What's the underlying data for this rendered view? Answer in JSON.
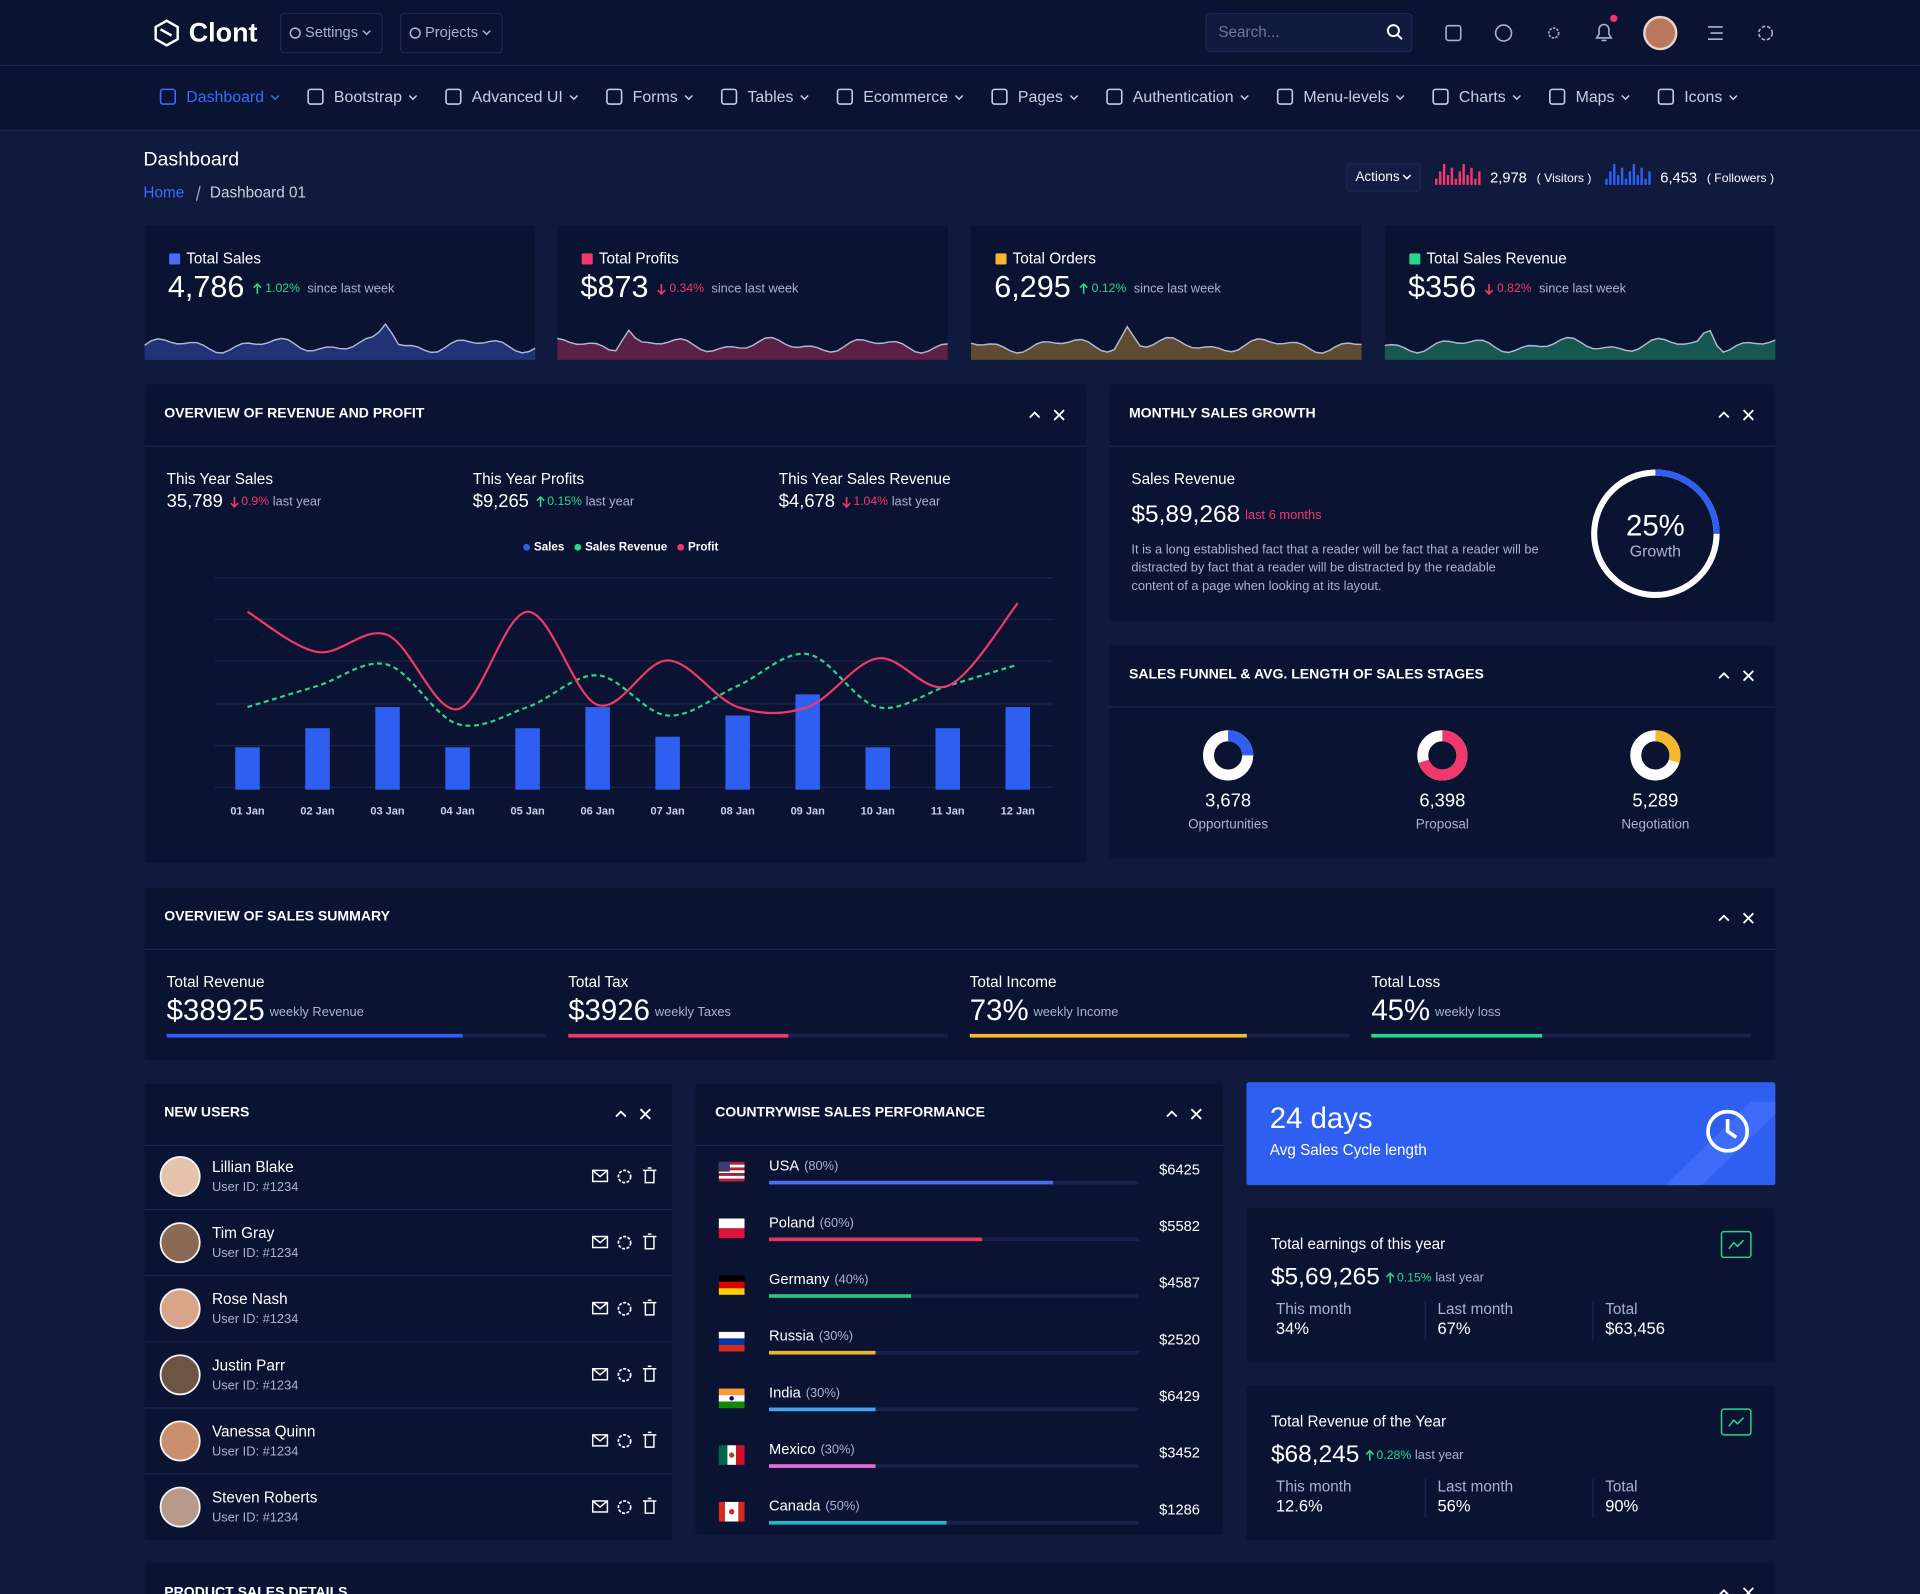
{
  "brand": "Clont",
  "topbar": {
    "menus": [
      "Settings",
      "Projects"
    ],
    "search_placeholder": "Search..."
  },
  "nav": [
    "Dashboard",
    "Bootstrap",
    "Advanced UI",
    "Forms",
    "Tables",
    "Ecommerce",
    "Pages",
    "Authentication",
    "Menu-levels",
    "Charts",
    "Maps",
    "Icons"
  ],
  "page": {
    "title": "Dashboard",
    "breadcrumb": [
      "Home",
      "Dashboard 01"
    ],
    "actions": "Actions",
    "visitors": {
      "value": "2,978",
      "label": "( Visitors )"
    },
    "followers": {
      "value": "6,453",
      "label": "( Followers )"
    }
  },
  "stats": [
    {
      "label": "Total Sales",
      "value": "4,786",
      "change": "1.02%",
      "trend": "up",
      "note": "since last week",
      "color": "#4a6cf7"
    },
    {
      "label": "Total Profits",
      "value": "$873",
      "change": "0.34%",
      "trend": "down",
      "note": "since last week",
      "color": "#f0386b"
    },
    {
      "label": "Total Orders",
      "value": "6,295",
      "change": "0.12%",
      "trend": "up",
      "note": "since last week",
      "color": "#f5b82e"
    },
    {
      "label": "Total Sales Revenue",
      "value": "$356",
      "change": "0.82%",
      "trend": "down",
      "note": "since last week",
      "color": "#2bd68a"
    }
  ],
  "overview": {
    "title": "OVERVIEW OF REVENUE AND PROFIT",
    "summary": [
      {
        "label": "This Year Sales",
        "value": "35,789",
        "change": "0.9%",
        "trend": "down",
        "note": "last year"
      },
      {
        "label": "This Year Profits",
        "value": "$9,265",
        "change": "0.15%",
        "trend": "up",
        "note": "last year"
      },
      {
        "label": "This Year Sales Revenue",
        "value": "$4,678",
        "change": "1.04%",
        "trend": "down",
        "note": "last year"
      }
    ],
    "chart": {
      "type": "bar",
      "categories": [
        "01 Jan",
        "02 Jan",
        "03 Jan",
        "04 Jan",
        "05 Jan",
        "06 Jan",
        "07 Jan",
        "08 Jan",
        "09 Jan",
        "10 Jan",
        "11 Jan",
        "12 Jan"
      ],
      "series": [
        {
          "name": "Sales",
          "color": "#2f5ff0",
          "values": [
            20,
            29,
            39,
            20,
            29,
            39,
            25,
            35,
            45,
            20,
            29,
            39
          ]
        },
        {
          "name": "Sales Revenue",
          "color": "#2bd68a",
          "type": "line",
          "dashed": true,
          "values": [
            39,
            49,
            59,
            31,
            39,
            54,
            35,
            49,
            64,
            39,
            49,
            59
          ]
        },
        {
          "name": "Profit",
          "color": "#f0386b",
          "type": "line",
          "values": [
            84,
            65,
            73,
            38,
            84,
            40,
            61,
            39,
            39,
            62,
            49,
            88
          ]
        }
      ],
      "ylim": [
        0,
        100
      ],
      "grid": true
    }
  },
  "growth": {
    "title": "MONTHLY SALES GROWTH",
    "label": "Sales Revenue",
    "value": "$5,89,268",
    "period": "last 6 months",
    "text": "It is a long established fact that a reader will be fact that a reader will be distracted by fact that a reader will be distracted by the readable content of a page when looking at its layout.",
    "percent": {
      "value": 25,
      "label": "25%"
    },
    "percent_caption": "Growth",
    "color": "#2f5ff0"
  },
  "funnel": {
    "title": "SALES FUNNEL & AVG. LENGTH OF SALES STAGES",
    "stages": [
      {
        "value": "3,678",
        "label": "Opportunities",
        "share": 25,
        "color": "#2f5ff0"
      },
      {
        "value": "6,398",
        "label": "Proposal",
        "share": 70,
        "color": "#f0386b"
      },
      {
        "value": "5,289",
        "label": "Negotiation",
        "share": 30,
        "color": "#f5b82e"
      }
    ]
  },
  "summary": {
    "title": "OVERVIEW OF SALES SUMMARY",
    "items": [
      {
        "label": "Total Revenue",
        "value": "$38925",
        "note": "weekly Revenue",
        "progress": 78,
        "color": "#2f5ff0"
      },
      {
        "label": "Total Tax",
        "value": "$3926",
        "note": "weekly Taxes",
        "progress": 58,
        "color": "#f0386b"
      },
      {
        "label": "Total Income",
        "value": "73%",
        "note": "weekly Income",
        "progress": 73,
        "color": "#f5b82e"
      },
      {
        "label": "Total Loss",
        "value": "45%",
        "note": "weekly loss",
        "progress": 45,
        "color": "#2bd68a"
      }
    ]
  },
  "users": {
    "title": "NEW USERS",
    "list": [
      {
        "name": "Lillian Blake",
        "id": "User ID: #1234"
      },
      {
        "name": "Tim Gray",
        "id": "User ID: #1234"
      },
      {
        "name": "Rose Nash",
        "id": "User ID: #1234"
      },
      {
        "name": "Justin Parr",
        "id": "User ID: #1234"
      },
      {
        "name": "Vanessa Quinn",
        "id": "User ID: #1234"
      },
      {
        "name": "Steven Roberts",
        "id": "User ID: #1234"
      }
    ]
  },
  "countries": {
    "title": "COUNTRYWISE SALES PERFORMANCE",
    "list": [
      {
        "name": "USA",
        "percent": {
          "value": 80,
          "label": "(80%)"
        },
        "amount": "$6425",
        "color": "#4a6cf7"
      },
      {
        "name": "Poland",
        "percent": {
          "value": 60,
          "label": "(60%)"
        },
        "amount": "$5582",
        "color": "#e8365d"
      },
      {
        "name": "Germany",
        "percent": {
          "value": 40,
          "label": "(40%)"
        },
        "amount": "$4587",
        "color": "#2bc27d"
      },
      {
        "name": "Russia",
        "percent": {
          "value": 30,
          "label": "(30%)"
        },
        "amount": "$2520",
        "color": "#f0b429"
      },
      {
        "name": "India",
        "percent": {
          "value": 30,
          "label": "(30%)"
        },
        "amount": "$6429",
        "color": "#4aa3f0"
      },
      {
        "name": "Mexico",
        "percent": {
          "value": 30,
          "label": "(30%)"
        },
        "amount": "$3452",
        "color": "#e86ad6"
      },
      {
        "name": "Canada",
        "percent": {
          "value": 50,
          "label": "(50%)"
        },
        "amount": "$1286",
        "color": "#26b5c9"
      }
    ]
  },
  "cycle": {
    "value": "24 days",
    "label": "Avg Sales Cycle length"
  },
  "earnings": [
    {
      "title": "Total earnings of this year",
      "value": "$5,69,265",
      "change": "0.15%",
      "trend": "up",
      "note": "last year",
      "cells": [
        {
          "label": "This month",
          "value": "34%"
        },
        {
          "label": "Last month",
          "value": "67%"
        },
        {
          "label": "Total",
          "value": "$63,456"
        }
      ]
    },
    {
      "title": "Total Revenue of the Year",
      "value": "$68,245",
      "change": "0.28%",
      "trend": "up",
      "note": "last year",
      "cells": [
        {
          "label": "This month",
          "value": "12.6%"
        },
        {
          "label": "Last month",
          "value": "56%"
        },
        {
          "label": "Total",
          "value": "90%"
        }
      ]
    }
  ],
  "product": {
    "title": "PRODUCT SALES DETAILS"
  }
}
